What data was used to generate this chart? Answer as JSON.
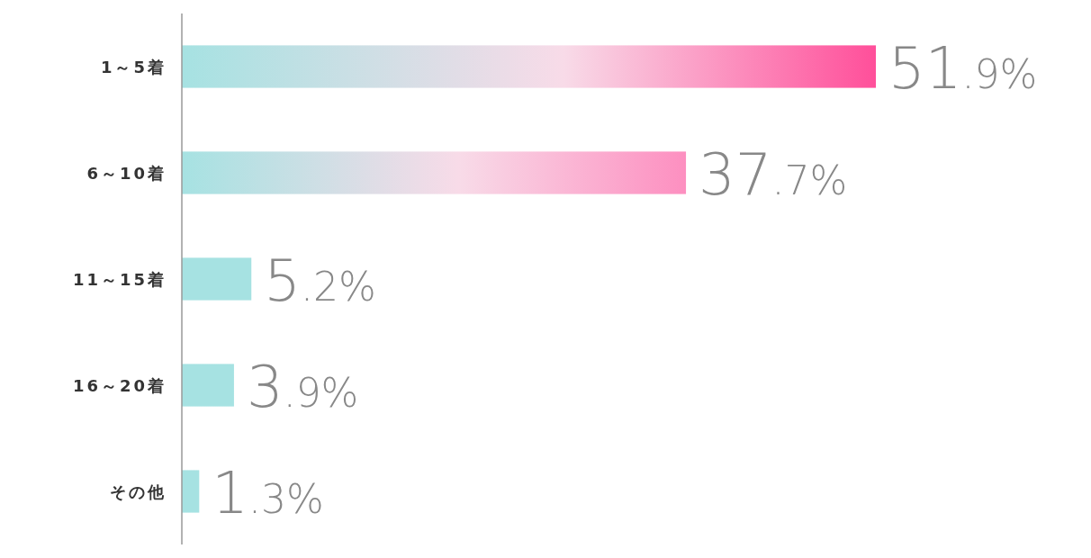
{
  "chart_data": {
    "type": "bar",
    "orientation": "horizontal",
    "categories": [
      "1～5着",
      "6～10着",
      "11～15着",
      "16～20着",
      "その他"
    ],
    "values": [
      51.9,
      37.7,
      5.2,
      3.9,
      1.3
    ],
    "value_labels": [
      "51.9%",
      "37.7%",
      "5.2%",
      "3.9%",
      "1.3%"
    ],
    "colors": [
      "#ff4f9a",
      "#fd8fc0",
      "#a6e2e2",
      "#a6e2e2",
      "#a6e2e2"
    ]
  }
}
